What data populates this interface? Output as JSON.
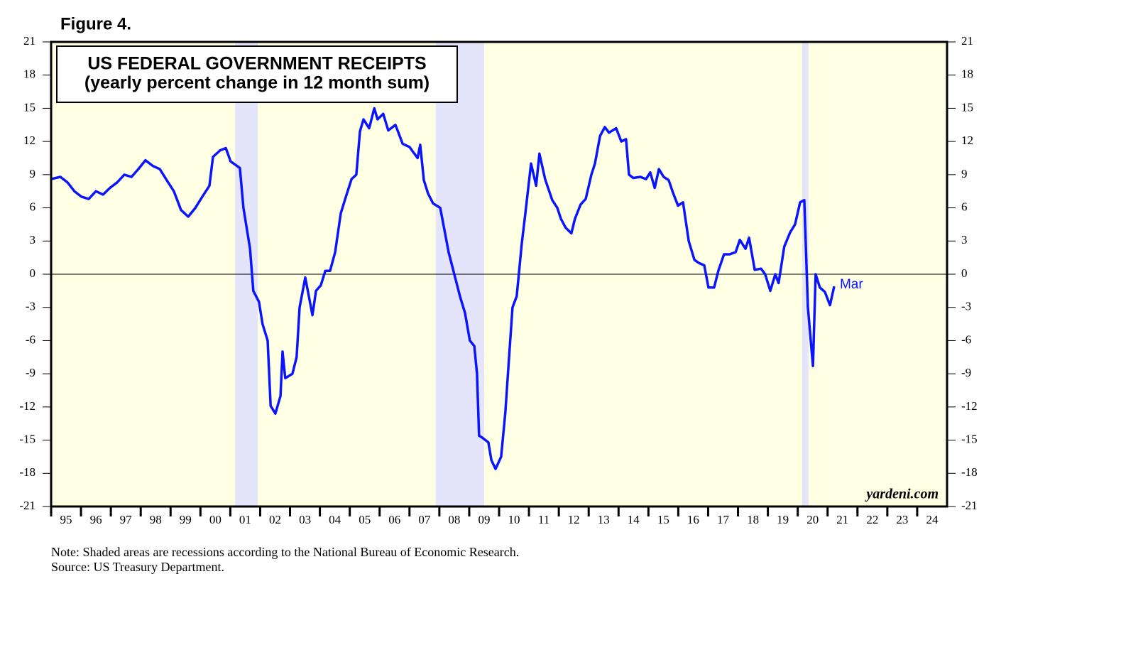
{
  "chart_data": {
    "type": "line",
    "figure_label": "Figure 4.",
    "title": "US FEDERAL GOVERNMENT RECEIPTS",
    "subtitle": "(yearly percent change in 12 month sum)",
    "notes": [
      "Note: Shaded areas are recessions according to the National Bureau of Economic Research.",
      "Source: US Treasury Department."
    ],
    "watermark": "yardeni.com",
    "background": "#ffffe3",
    "recession_color": "#e4e4fb",
    "recessions": [
      [
        2001.16,
        2001.92
      ],
      [
        2007.88,
        2009.5
      ],
      [
        2020.15,
        2020.36
      ]
    ],
    "zero_line": true,
    "xlim": [
      1995,
      2025
    ],
    "xticks": [
      {
        "value": 1995,
        "label": "95"
      },
      {
        "value": 1996,
        "label": "96"
      },
      {
        "value": 1997,
        "label": "97"
      },
      {
        "value": 1998,
        "label": "98"
      },
      {
        "value": 1999,
        "label": "99"
      },
      {
        "value": 2000,
        "label": "00"
      },
      {
        "value": 2001,
        "label": "01"
      },
      {
        "value": 2002,
        "label": "02"
      },
      {
        "value": 2003,
        "label": "03"
      },
      {
        "value": 2004,
        "label": "04"
      },
      {
        "value": 2005,
        "label": "05"
      },
      {
        "value": 2006,
        "label": "06"
      },
      {
        "value": 2007,
        "label": "07"
      },
      {
        "value": 2008,
        "label": "08"
      },
      {
        "value": 2009,
        "label": "09"
      },
      {
        "value": 2010,
        "label": "10"
      },
      {
        "value": 2011,
        "label": "11"
      },
      {
        "value": 2012,
        "label": "12"
      },
      {
        "value": 2013,
        "label": "13"
      },
      {
        "value": 2014,
        "label": "14"
      },
      {
        "value": 2015,
        "label": "15"
      },
      {
        "value": 2016,
        "label": "16"
      },
      {
        "value": 2017,
        "label": "17"
      },
      {
        "value": 2018,
        "label": "18"
      },
      {
        "value": 2019,
        "label": "19"
      },
      {
        "value": 2020,
        "label": "20"
      },
      {
        "value": 2021,
        "label": "21"
      },
      {
        "value": 2022,
        "label": "22"
      },
      {
        "value": 2023,
        "label": "23"
      },
      {
        "value": 2024,
        "label": "24"
      }
    ],
    "ylim": [
      -21,
      21
    ],
    "yticks": [
      -21,
      -18,
      -15,
      -12,
      -9,
      -6,
      -3,
      0,
      3,
      6,
      9,
      12,
      15,
      18,
      21
    ],
    "annotation": "Mar",
    "x": [
      1995.0,
      1995.31,
      1995.55,
      1995.78,
      1996.02,
      1996.26,
      1996.5,
      1996.74,
      1996.97,
      1997.21,
      1997.45,
      1997.69,
      1997.92,
      1998.16,
      1998.4,
      1998.64,
      1998.87,
      1999.11,
      1999.35,
      1999.59,
      1999.83,
      2000.06,
      2000.3,
      2000.42,
      2000.66,
      2000.85,
      2001.01,
      2001.32,
      2001.44,
      2001.66,
      2001.77,
      2001.96,
      2002.08,
      2002.25,
      2002.35,
      2002.51,
      2002.68,
      2002.75,
      2002.84,
      2003.08,
      2003.22,
      2003.32,
      2003.51,
      2003.75,
      2003.87,
      2004.03,
      2004.18,
      2004.34,
      2004.51,
      2004.7,
      2004.87,
      2005.06,
      2005.22,
      2005.34,
      2005.46,
      2005.65,
      2005.82,
      2005.93,
      2006.12,
      2006.29,
      2006.53,
      2006.77,
      2007.0,
      2007.27,
      2007.36,
      2007.48,
      2007.62,
      2007.79,
      2008.03,
      2008.17,
      2008.31,
      2008.5,
      2008.69,
      2008.86,
      2009.02,
      2009.17,
      2009.26,
      2009.33,
      2009.45,
      2009.64,
      2009.74,
      2009.88,
      2010.07,
      2010.21,
      2010.31,
      2010.45,
      2010.59,
      2010.76,
      2010.88,
      2011.07,
      2011.24,
      2011.35,
      2011.54,
      2011.64,
      2011.78,
      2011.95,
      2012.07,
      2012.23,
      2012.42,
      2012.54,
      2012.73,
      2012.9,
      2013.09,
      2013.21,
      2013.38,
      2013.54,
      2013.68,
      2013.92,
      2014.09,
      2014.25,
      2014.35,
      2014.49,
      2014.73,
      2014.92,
      2015.06,
      2015.21,
      2015.35,
      2015.51,
      2015.68,
      2015.82,
      2015.99,
      2016.16,
      2016.35,
      2016.54,
      2016.7,
      2016.87,
      2017.01,
      2017.2,
      2017.34,
      2017.53,
      2017.72,
      2017.92,
      2018.06,
      2018.25,
      2018.37,
      2018.56,
      2018.77,
      2018.91,
      2019.08,
      2019.25,
      2019.36,
      2019.55,
      2019.75,
      2019.91,
      2020.08,
      2020.22,
      2020.34,
      2020.51,
      2020.6,
      2020.74,
      2020.91,
      2021.08,
      2021.22
    ],
    "series": [
      {
        "color": "#0a14ff",
        "values": [
          8.6,
          8.8,
          8.3,
          7.5,
          7.0,
          6.8,
          7.5,
          7.2,
          7.8,
          8.3,
          9.0,
          8.8,
          9.5,
          10.3,
          9.8,
          9.5,
          8.5,
          7.5,
          5.8,
          5.2,
          6.0,
          7.0,
          8.0,
          10.6,
          11.2,
          11.4,
          10.2,
          9.6,
          6.0,
          2.3,
          -1.5,
          -2.5,
          -4.5,
          -6.0,
          -11.9,
          -12.6,
          -11.0,
          -7.0,
          -9.4,
          -9.0,
          -7.5,
          -3.0,
          -0.3,
          -3.7,
          -1.5,
          -1.0,
          0.3,
          0.3,
          2.0,
          5.5,
          7.0,
          8.6,
          9.0,
          12.9,
          14.0,
          13.2,
          15.0,
          14.0,
          14.5,
          13.0,
          13.5,
          11.8,
          11.5,
          10.5,
          11.7,
          8.5,
          7.3,
          6.4,
          6.0,
          4.0,
          2.0,
          0.0,
          -2.0,
          -3.5,
          -6.0,
          -6.5,
          -9.0,
          -14.6,
          -14.8,
          -15.2,
          -16.8,
          -17.6,
          -16.5,
          -12.5,
          -8.5,
          -3.0,
          -2.0,
          2.8,
          5.5,
          10.0,
          8.0,
          10.9,
          8.6,
          7.8,
          6.7,
          6.0,
          5.0,
          4.2,
          3.7,
          5.0,
          6.3,
          6.8,
          9.0,
          10.0,
          12.5,
          13.3,
          12.8,
          13.2,
          12.0,
          12.2,
          9.0,
          8.7,
          8.8,
          8.6,
          9.2,
          7.8,
          9.5,
          8.8,
          8.5,
          7.4,
          6.2,
          6.5,
          3.0,
          1.3,
          1.0,
          0.8,
          -1.2,
          -1.2,
          0.3,
          1.8,
          1.8,
          2.0,
          3.1,
          2.3,
          3.3,
          0.4,
          0.5,
          0.0,
          -1.5,
          0.0,
          -0.8,
          2.5,
          3.8,
          4.5,
          6.5,
          6.7,
          -3.0,
          -8.3,
          0.0,
          -1.2,
          -1.6,
          -2.8,
          -1.1
        ]
      }
    ]
  }
}
